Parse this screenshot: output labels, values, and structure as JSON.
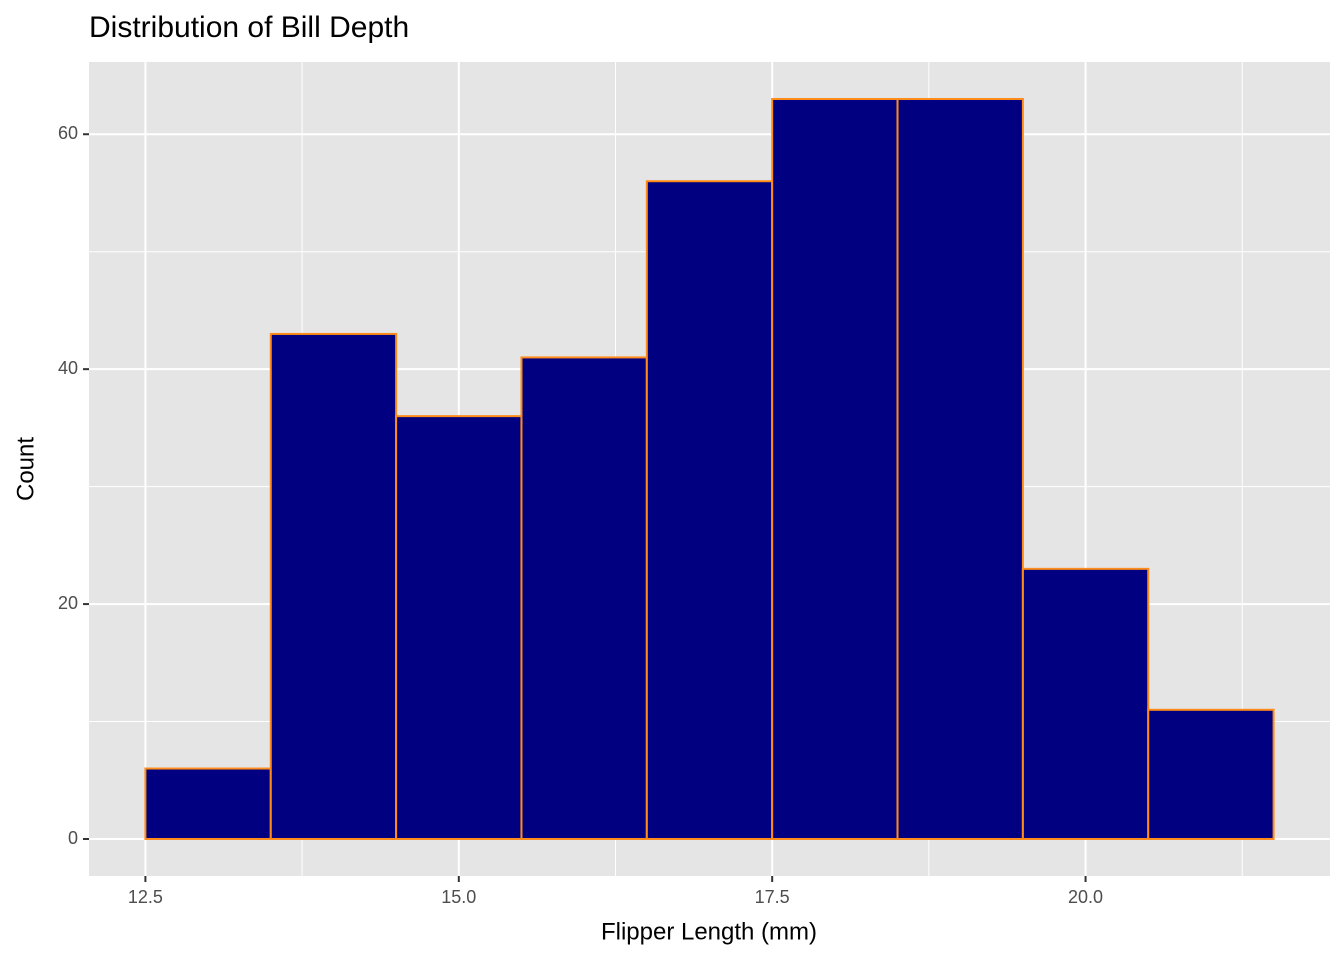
{
  "chart_data": {
    "type": "histogram",
    "title": "Distribution of Bill Depth",
    "x_label": "Flipper Length (mm)",
    "y_label": "Count",
    "bins": [
      12.5,
      13.5,
      14.5,
      15.5,
      16.5,
      17.5,
      18.5,
      19.5,
      20.5,
      21.5
    ],
    "counts": [
      6,
      43,
      36,
      41,
      56,
      63,
      63,
      23,
      11
    ],
    "color": "#000080",
    "edgecolor": "#ff8c1a",
    "xlim": [
      12.05,
      21.95
    ],
    "ylim": [
      -3.15,
      66.15
    ],
    "xticks": [
      {
        "value": 12.5,
        "label": "12.5"
      },
      {
        "value": 15,
        "label": "15.0"
      },
      {
        "value": 17.5,
        "label": "17.5"
      },
      {
        "value": 20,
        "label": "20.0"
      }
    ],
    "yticks": [
      0,
      20,
      40,
      60
    ],
    "x_minor_ticks": [
      13.75,
      16.25,
      18.75,
      21.25
    ],
    "y_minor_ticks": [
      10,
      30,
      50
    ],
    "grid": true
  }
}
